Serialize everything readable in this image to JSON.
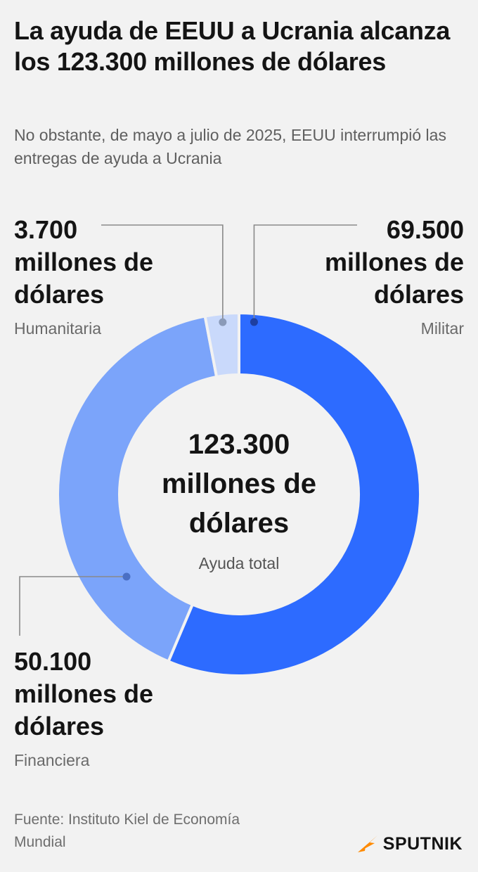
{
  "header": {
    "title": "La ayuda de EEUU a Ucrania alcanza los 123.300 millones de dólares",
    "subtitle": "No obstante, de mayo a julio de 2025, EEUU interrumpió las entregas de ayuda a Ucrania"
  },
  "callouts": {
    "humanitaria": {
      "value": "3.700 millones de dólares",
      "label": "Humanitaria"
    },
    "militar": {
      "value": "69.500 millones de dólares",
      "label": "Militar"
    },
    "financiera": {
      "value": "50.100 millones de dólares",
      "label": "Financiera"
    }
  },
  "center": {
    "value": "123.300 millones de dólares",
    "label": "Ayuda total"
  },
  "footer": {
    "source": "Fuente: Instituto Kiel de Economía Mundial",
    "brand": "SPUTNIK"
  },
  "colors": {
    "militar": "#2d6bff",
    "financiera": "#7ba4fa",
    "humanitaria": "#c9d9fb",
    "background": "#f2f2f2",
    "leader": "#8a8a8a",
    "brand_accent": "#ff8a00"
  },
  "chart_data": {
    "type": "pie",
    "donut": true,
    "unit": "millones de dólares",
    "categories": [
      "Militar",
      "Financiera",
      "Humanitaria"
    ],
    "values": [
      69500,
      50100,
      3700
    ],
    "total": 123300
  }
}
